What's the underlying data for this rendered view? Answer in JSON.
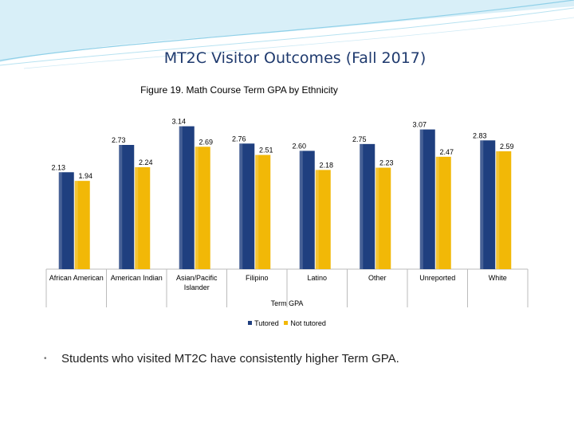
{
  "slide": {
    "title": "MT2C Visitor Outcomes (Fall 2017)",
    "bullet_symbol": "•",
    "bullet_text": "Students who visited MT2C have consistently higher Term GPA."
  },
  "colors": {
    "tutored": "#1f3f7f",
    "not_tutored": "#f2b807",
    "axis": "#bbbbbb",
    "deco": "#8fd0e8"
  },
  "chart_data": {
    "type": "bar",
    "title": "Figure 19. Math Course Term GPA by Ethnicity",
    "xlabel": "Term GPA",
    "ylabel": "",
    "ylim": [
      0,
      3.5
    ],
    "grid": false,
    "legend_position": "bottom",
    "categories": [
      "African American",
      "American Indian",
      "Asian/Pacific Islander",
      "Filipino",
      "Latino",
      "Other",
      "Unreported",
      "White"
    ],
    "category_lines": [
      [
        "African American"
      ],
      [
        "American Indian"
      ],
      [
        "Asian/Pacific",
        "Islander"
      ],
      [
        "Filipino"
      ],
      [
        "Latino"
      ],
      [
        "Other"
      ],
      [
        "Unreported"
      ],
      [
        "White"
      ]
    ],
    "series": [
      {
        "name": "Tutored",
        "values": [
          2.13,
          2.73,
          3.14,
          2.76,
          2.6,
          2.75,
          3.07,
          2.83
        ],
        "labels": [
          "2.13",
          "2.73",
          "3.14",
          "2.76",
          "2.60",
          "2.75",
          "3.07",
          "2.83"
        ]
      },
      {
        "name": "Not tutored",
        "values": [
          1.94,
          2.24,
          2.69,
          2.51,
          2.18,
          2.23,
          2.47,
          2.59
        ],
        "labels": [
          "1.94",
          "2.24",
          "2.69",
          "2.51",
          "2.18",
          "2.23",
          "2.47",
          "2.59"
        ]
      }
    ]
  }
}
